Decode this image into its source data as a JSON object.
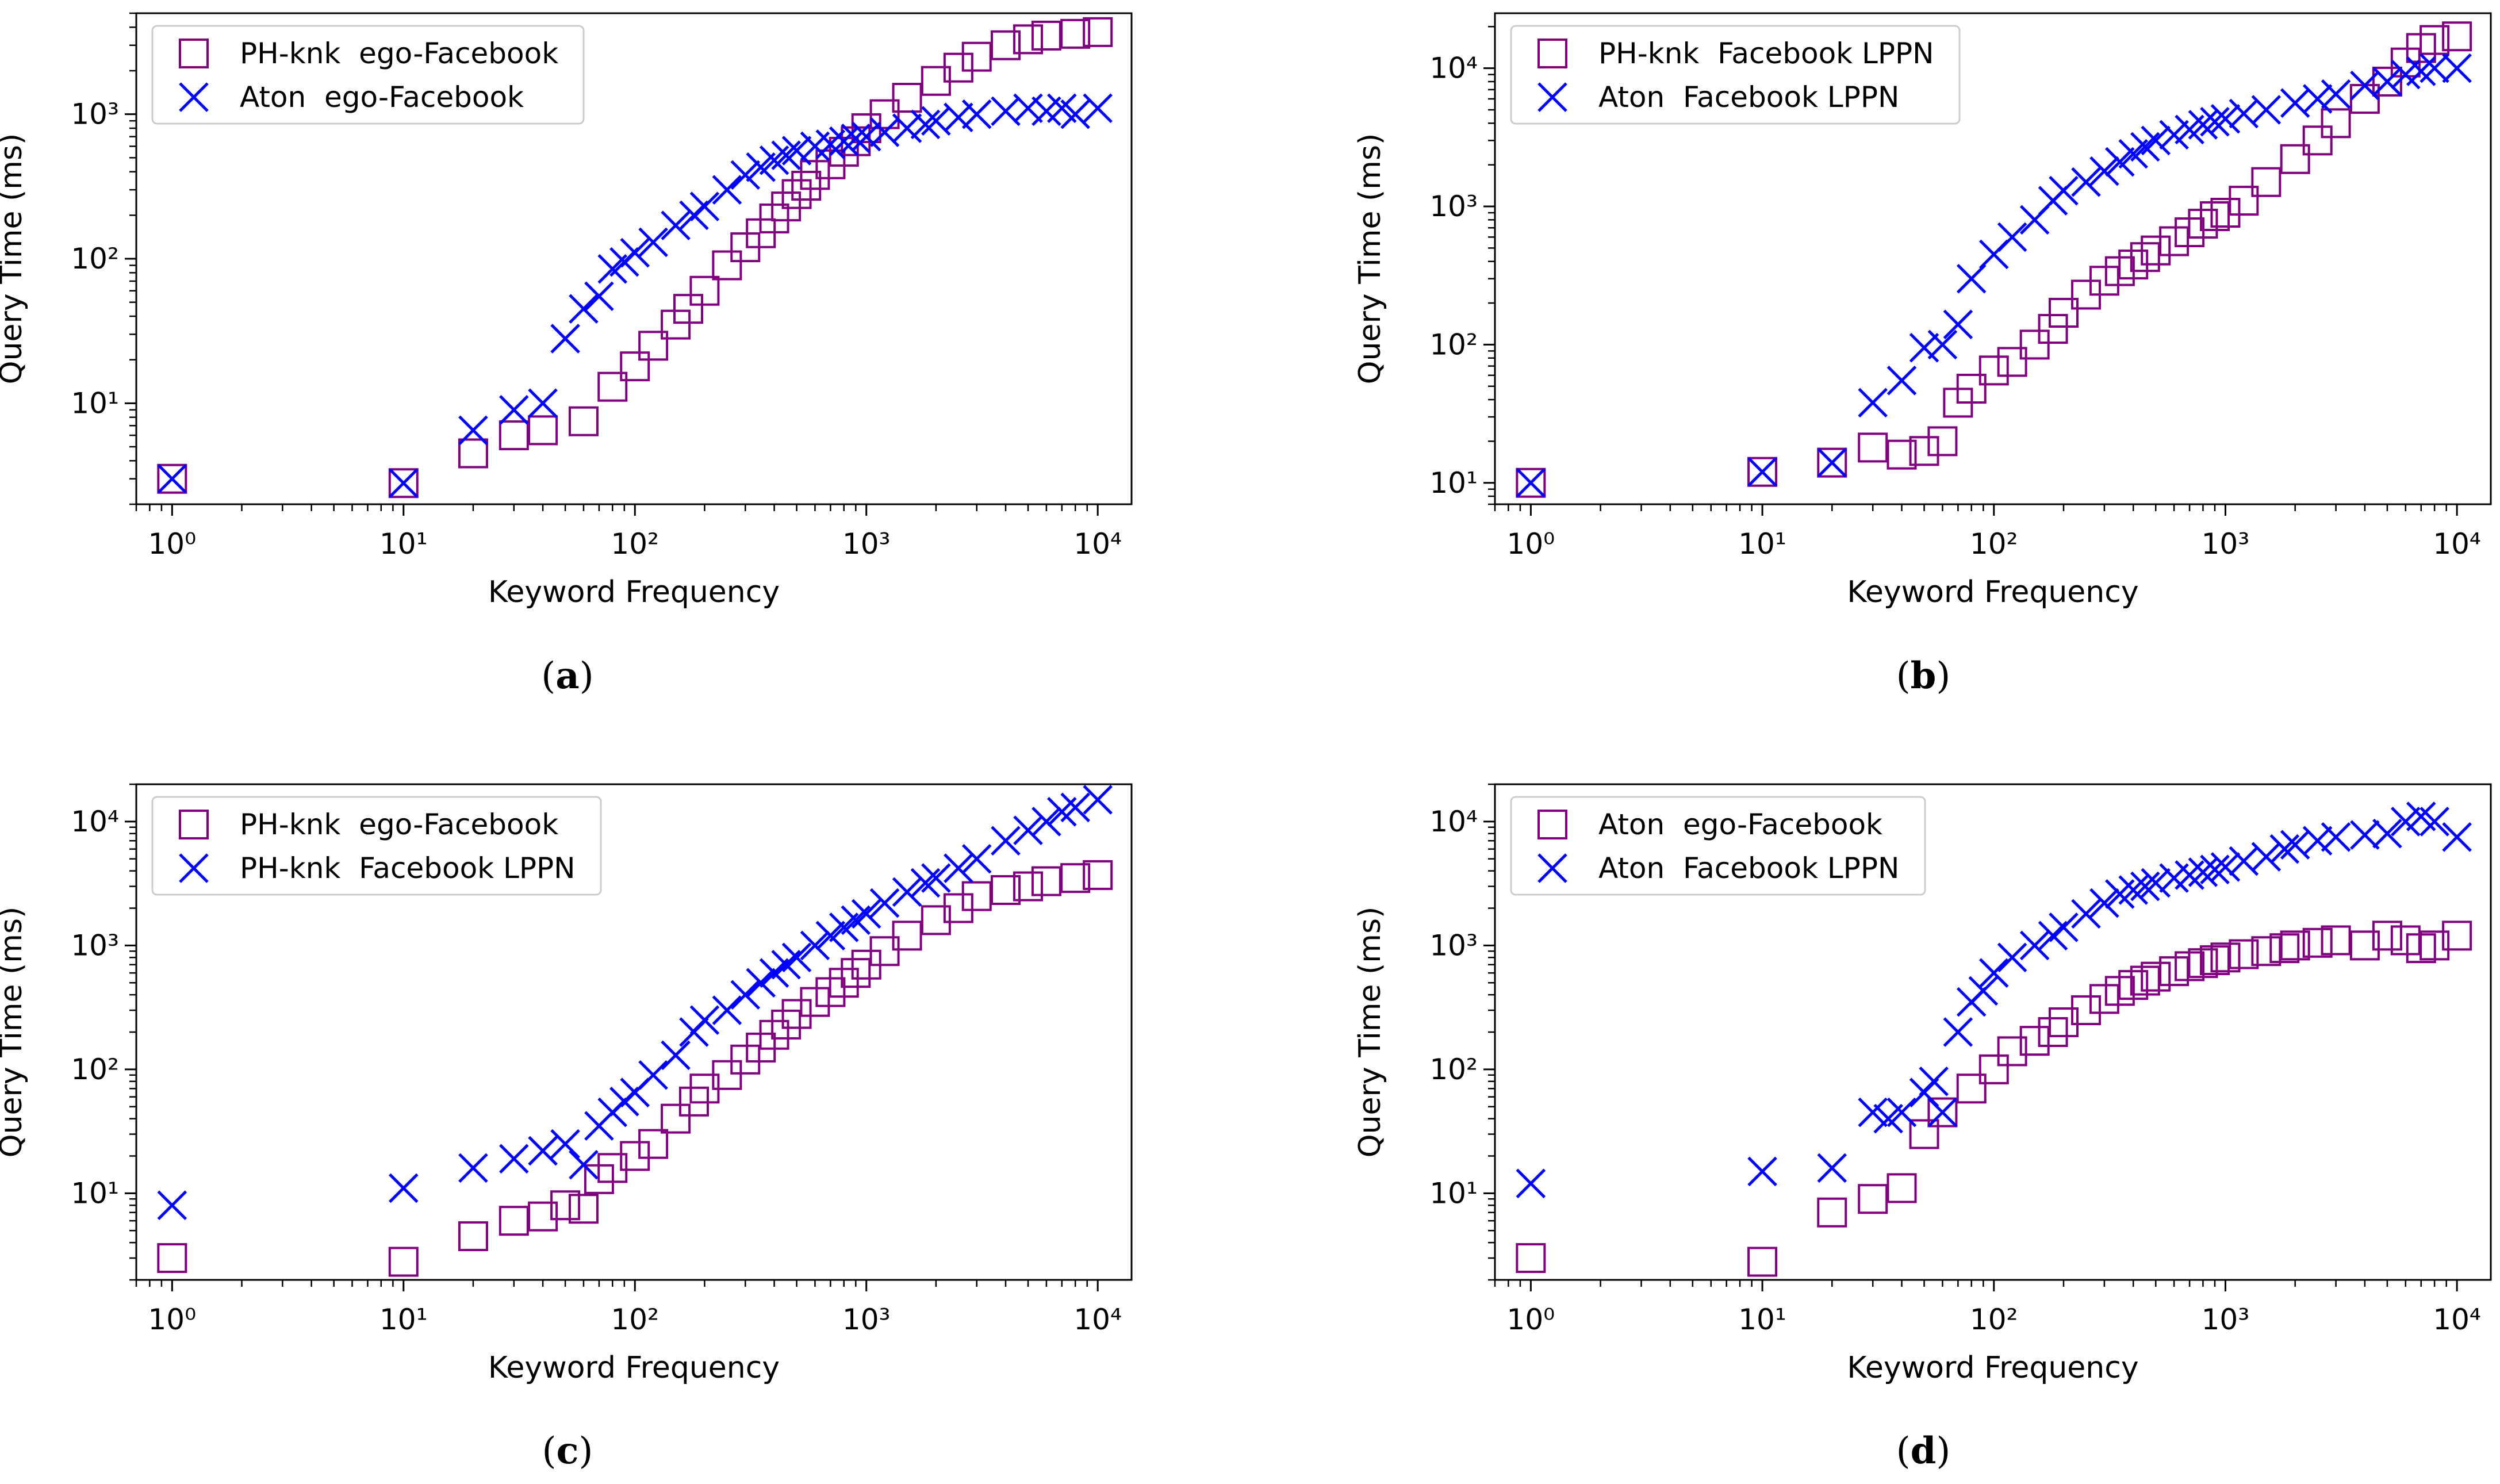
{
  "colors": {
    "series_a": "#800080",
    "series_b": "#0000ff",
    "axis": "#000000",
    "legend_border": "#cccccc"
  },
  "captions": [
    {
      "open": "(",
      "letter": "a",
      "close": ")"
    },
    {
      "open": "(",
      "letter": "b",
      "close": ")"
    },
    {
      "open": "(",
      "letter": "c",
      "close": ")"
    },
    {
      "open": "(",
      "letter": "d",
      "close": ")"
    }
  ],
  "chart_data": [
    {
      "type": "scatter",
      "xlabel": "Keyword Frequency",
      "ylabel": "Query Time (ms)",
      "xscale": "log",
      "yscale": "log",
      "xlim": [
        0.7,
        14000
      ],
      "ylim": [
        2,
        5000
      ],
      "xticks": [
        1,
        10,
        100,
        1000,
        10000
      ],
      "yticks": [
        10,
        100,
        1000
      ],
      "legend_position": "upper-left",
      "series": [
        {
          "name": "PH-knk  ego-Facebook",
          "marker": "square",
          "x": [
            1,
            10,
            20,
            30,
            40,
            60,
            80,
            100,
            120,
            150,
            170,
            200,
            250,
            300,
            350,
            400,
            450,
            500,
            550,
            600,
            700,
            800,
            900,
            1000,
            1200,
            1500,
            2000,
            2500,
            3000,
            4000,
            5000,
            6000,
            8000,
            10000
          ],
          "y": [
            3,
            2.8,
            4.5,
            6,
            6.5,
            7.5,
            13,
            18,
            25,
            35,
            45,
            60,
            90,
            120,
            150,
            190,
            230,
            280,
            320,
            380,
            450,
            550,
            650,
            800,
            1000,
            1300,
            1700,
            2100,
            2500,
            3000,
            3300,
            3500,
            3600,
            3700
          ]
        },
        {
          "name": "Aton  ego-Facebook",
          "marker": "x",
          "x": [
            1,
            10,
            20,
            30,
            40,
            50,
            60,
            70,
            80,
            90,
            100,
            120,
            150,
            180,
            200,
            250,
            300,
            350,
            400,
            450,
            500,
            600,
            700,
            800,
            900,
            1000,
            1200,
            1500,
            1800,
            2000,
            2500,
            3000,
            4000,
            5000,
            6000,
            7000,
            8000,
            10000
          ],
          "y": [
            3,
            2.8,
            6.5,
            9,
            10,
            28,
            45,
            55,
            85,
            95,
            110,
            130,
            170,
            200,
            230,
            300,
            380,
            430,
            480,
            520,
            560,
            600,
            620,
            650,
            680,
            700,
            750,
            800,
            850,
            900,
            950,
            1000,
            1050,
            1100,
            1050,
            1100,
            1000,
            1100
          ]
        }
      ]
    },
    {
      "type": "scatter",
      "xlabel": "Keyword Frequency",
      "ylabel": "Query Time (ms)",
      "xscale": "log",
      "yscale": "log",
      "xlim": [
        0.7,
        14000
      ],
      "ylim": [
        7,
        25000
      ],
      "xticks": [
        1,
        10,
        100,
        1000,
        10000
      ],
      "yticks": [
        10,
        100,
        1000,
        10000
      ],
      "legend_position": "upper-left",
      "series": [
        {
          "name": "PH-knk  Facebook LPPN",
          "marker": "square",
          "x": [
            1,
            10,
            20,
            30,
            40,
            50,
            60,
            70,
            80,
            100,
            120,
            150,
            180,
            200,
            250,
            300,
            350,
            400,
            450,
            500,
            600,
            700,
            800,
            900,
            1000,
            1200,
            1500,
            2000,
            2500,
            3000,
            4000,
            5000,
            6000,
            7000,
            8000,
            10000
          ],
          "y": [
            10,
            12,
            14,
            18,
            16,
            17,
            20,
            38,
            48,
            65,
            75,
            100,
            130,
            170,
            230,
            290,
            340,
            380,
            430,
            480,
            560,
            650,
            750,
            850,
            900,
            1100,
            1500,
            2200,
            3000,
            4000,
            6000,
            8000,
            11000,
            14000,
            16000,
            17000
          ]
        },
        {
          "name": "Aton  Facebook LPPN",
          "marker": "x",
          "x": [
            1,
            10,
            20,
            30,
            40,
            50,
            60,
            70,
            80,
            100,
            120,
            150,
            180,
            200,
            250,
            300,
            350,
            400,
            450,
            500,
            600,
            700,
            800,
            900,
            1000,
            1200,
            1500,
            2000,
            2500,
            3000,
            4000,
            5000,
            6000,
            7000,
            8000,
            10000
          ],
          "y": [
            10,
            12,
            14,
            38,
            55,
            95,
            100,
            140,
            300,
            450,
            600,
            800,
            1100,
            1300,
            1500,
            1800,
            2100,
            2400,
            2700,
            3000,
            3300,
            3600,
            3900,
            4100,
            4300,
            4700,
            5000,
            5600,
            6000,
            6500,
            7500,
            8000,
            9000,
            9500,
            10000,
            10000
          ]
        }
      ]
    },
    {
      "type": "scatter",
      "xlabel": "Keyword Frequency",
      "ylabel": "Query Time (ms)",
      "xscale": "log",
      "yscale": "log",
      "xlim": [
        0.7,
        14000
      ],
      "ylim": [
        2,
        20000
      ],
      "xticks": [
        1,
        10,
        100,
        1000,
        10000
      ],
      "yticks": [
        10,
        100,
        1000,
        10000
      ],
      "legend_position": "upper-left",
      "series": [
        {
          "name": "PH-knk  ego-Facebook",
          "marker": "square",
          "x": [
            1,
            10,
            20,
            30,
            40,
            50,
            60,
            70,
            80,
            100,
            120,
            150,
            180,
            200,
            250,
            300,
            350,
            400,
            450,
            500,
            600,
            700,
            800,
            900,
            1000,
            1200,
            1500,
            2000,
            2500,
            3000,
            4000,
            5000,
            6000,
            8000,
            10000
          ],
          "y": [
            3,
            2.8,
            4.5,
            6,
            6.5,
            8,
            7.5,
            13,
            16,
            20,
            25,
            40,
            55,
            70,
            90,
            120,
            150,
            190,
            230,
            280,
            350,
            420,
            500,
            600,
            700,
            900,
            1200,
            1600,
            2000,
            2500,
            2800,
            3000,
            3300,
            3500,
            3700
          ]
        },
        {
          "name": "PH-knk  Facebook LPPN",
          "marker": "x",
          "x": [
            1,
            10,
            20,
            30,
            40,
            50,
            60,
            70,
            80,
            90,
            100,
            120,
            150,
            180,
            200,
            250,
            300,
            350,
            400,
            450,
            500,
            600,
            700,
            800,
            900,
            1000,
            1200,
            1500,
            1800,
            2000,
            2500,
            3000,
            4000,
            5000,
            6000,
            7000,
            8000,
            10000
          ],
          "y": [
            8,
            11,
            16,
            19,
            22,
            25,
            17,
            35,
            45,
            55,
            65,
            90,
            130,
            200,
            250,
            300,
            400,
            500,
            600,
            700,
            800,
            1000,
            1200,
            1400,
            1600,
            1800,
            2200,
            2700,
            3200,
            3500,
            4200,
            5000,
            7000,
            8500,
            10000,
            12000,
            13000,
            15000
          ]
        }
      ]
    },
    {
      "type": "scatter",
      "xlabel": "Keyword Frequency",
      "ylabel": "Query Time (ms)",
      "xscale": "log",
      "yscale": "log",
      "xlim": [
        0.7,
        14000
      ],
      "ylim": [
        2,
        20000
      ],
      "xticks": [
        1,
        10,
        100,
        1000,
        10000
      ],
      "yticks": [
        10,
        100,
        1000,
        10000
      ],
      "legend_position": "upper-left",
      "series": [
        {
          "name": "Aton  ego-Facebook",
          "marker": "square",
          "x": [
            1,
            10,
            20,
            30,
            40,
            50,
            60,
            80,
            100,
            120,
            150,
            180,
            200,
            250,
            300,
            350,
            400,
            450,
            500,
            600,
            700,
            800,
            900,
            1000,
            1200,
            1500,
            1800,
            2000,
            2500,
            3000,
            4000,
            5000,
            6000,
            7000,
            8000,
            10000
          ],
          "y": [
            3,
            2.8,
            7,
            9,
            11,
            30,
            45,
            70,
            100,
            140,
            170,
            200,
            240,
            300,
            370,
            430,
            480,
            520,
            560,
            620,
            680,
            720,
            760,
            800,
            850,
            900,
            950,
            1000,
            1050,
            1100,
            1000,
            1200,
            1100,
            950,
            1000,
            1200
          ]
        },
        {
          "name": "Aton  Facebook LPPN",
          "marker": "x",
          "x": [
            1,
            10,
            20,
            30,
            35,
            40,
            50,
            55,
            60,
            70,
            80,
            90,
            100,
            120,
            150,
            180,
            200,
            250,
            300,
            350,
            400,
            450,
            500,
            600,
            700,
            800,
            900,
            1000,
            1200,
            1500,
            1800,
            2000,
            2500,
            3000,
            4000,
            5000,
            6000,
            7000,
            8000,
            10000
          ],
          "y": [
            12,
            15,
            16,
            45,
            40,
            45,
            65,
            80,
            45,
            200,
            350,
            430,
            600,
            800,
            1000,
            1200,
            1400,
            1800,
            2200,
            2600,
            2800,
            3000,
            3200,
            3500,
            3700,
            3900,
            4100,
            4300,
            4800,
            5200,
            6000,
            6500,
            7000,
            7500,
            7800,
            8000,
            10000,
            11000,
            10000,
            7500
          ]
        }
      ]
    }
  ]
}
